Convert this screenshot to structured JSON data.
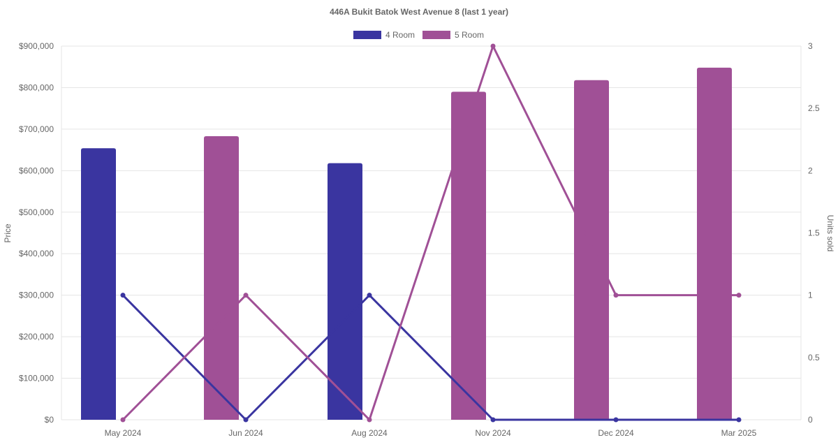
{
  "chart_data": {
    "type": "bar",
    "title": "446A Bukit Batok West Avenue 8 (last 1 year)",
    "categories": [
      "May 2024",
      "Jun 2024",
      "Aug 2024",
      "Nov 2024",
      "Dec 2024",
      "Mar 2025"
    ],
    "y_left": {
      "label": "Price",
      "ylim": [
        0,
        900000
      ],
      "ticks": [
        "$0",
        "$100,000",
        "$200,000",
        "$300,000",
        "$400,000",
        "$500,000",
        "$600,000",
        "$700,000",
        "$800,000",
        "$900,000"
      ]
    },
    "y_right": {
      "label": "Units sold",
      "ylim": [
        0,
        3
      ],
      "ticks": [
        "0",
        "0.5",
        "1",
        "1.5",
        "2",
        "2.5",
        "3"
      ]
    },
    "grid": true,
    "legend": {
      "placement": "top-center",
      "entries": [
        "4 Room",
        "5 Room"
      ]
    },
    "series": [
      {
        "name": "4 Room",
        "color": "#3a35a0",
        "kind": "bar",
        "axis": "left",
        "values": [
          654000,
          null,
          618000,
          null,
          null,
          null
        ]
      },
      {
        "name": "5 Room",
        "color": "#a05096",
        "kind": "bar",
        "axis": "left",
        "values": [
          null,
          683000,
          null,
          790000,
          818000,
          848000
        ]
      },
      {
        "name": "4 Room",
        "color": "#3a35a0",
        "kind": "line",
        "axis": "right",
        "values": [
          1,
          0,
          1,
          0,
          0,
          0
        ]
      },
      {
        "name": "5 Room",
        "color": "#a05096",
        "kind": "line",
        "axis": "right",
        "values": [
          0,
          1,
          0,
          3,
          1,
          1
        ]
      }
    ]
  }
}
